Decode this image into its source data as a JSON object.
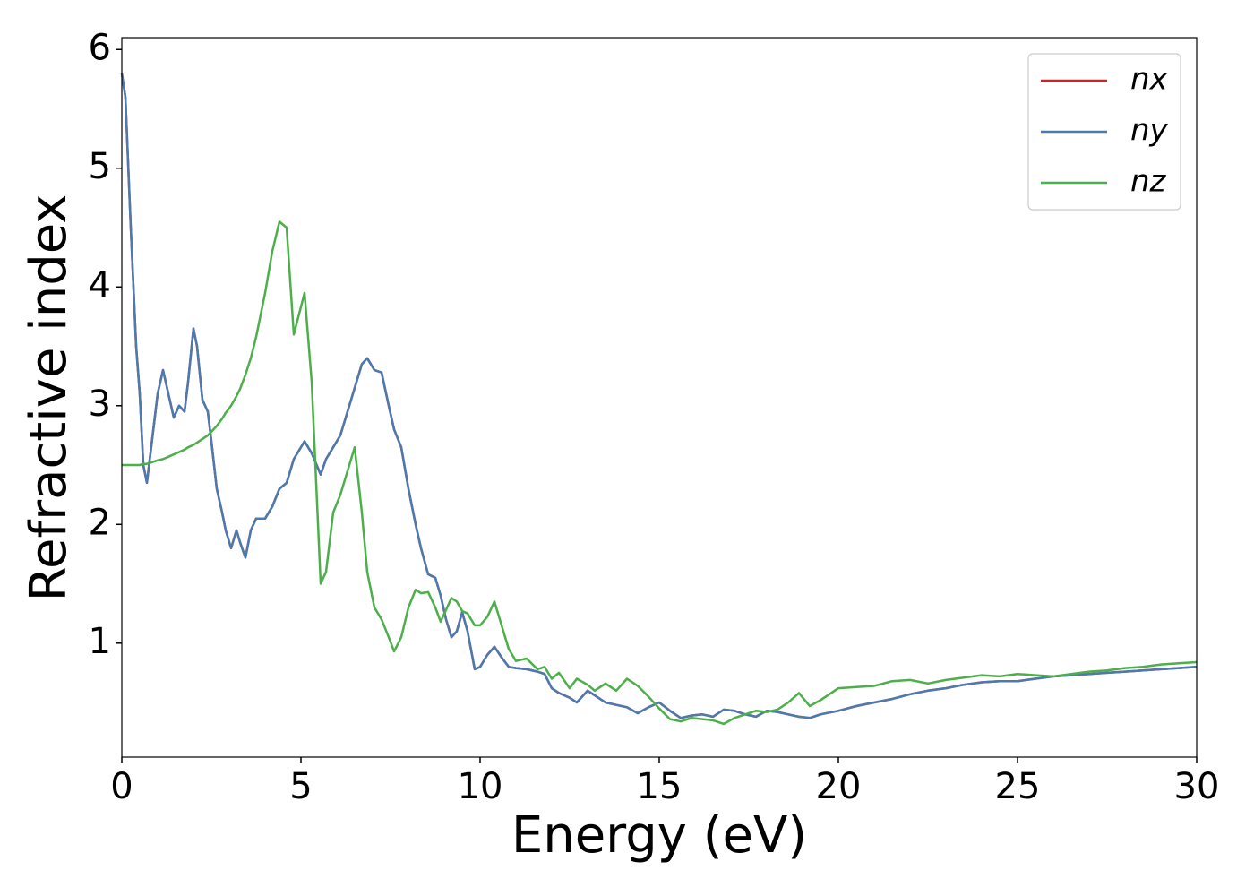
{
  "chart_data": {
    "type": "line",
    "x_label": "Energy (eV)",
    "y_label": "Refractive index",
    "x": [
      0,
      0.1,
      0.25,
      0.4,
      0.5,
      0.6,
      0.7,
      0.8,
      0.9,
      1.0,
      1.15,
      1.3,
      1.45,
      1.6,
      1.75,
      1.85,
      2.0,
      2.1,
      2.25,
      2.4,
      2.5,
      2.65,
      2.8,
      2.9,
      3.05,
      3.2,
      3.3,
      3.45,
      3.6,
      3.75,
      4.0,
      4.2,
      4.4,
      4.6,
      4.8,
      5.1,
      5.3,
      5.55,
      5.7,
      5.9,
      6.1,
      6.3,
      6.5,
      6.7,
      6.85,
      7.05,
      7.25,
      7.45,
      7.6,
      7.8,
      8.0,
      8.2,
      8.35,
      8.55,
      8.75,
      8.9,
      9.05,
      9.2,
      9.35,
      9.5,
      9.65,
      9.85,
      10.0,
      10.2,
      10.4,
      10.6,
      10.8,
      11.0,
      11.3,
      11.6,
      11.8,
      12.0,
      12.2,
      12.5,
      12.7,
      13.0,
      13.2,
      13.5,
      13.8,
      14.1,
      14.4,
      14.7,
      15.0,
      15.3,
      15.6,
      15.9,
      16.2,
      16.5,
      16.8,
      17.1,
      17.4,
      17.7,
      18.0,
      18.3,
      18.6,
      18.9,
      19.2,
      19.5,
      20,
      20.5,
      21,
      21.5,
      22,
      22.5,
      23,
      23.5,
      24,
      24.5,
      25,
      25.5,
      26,
      26.5,
      27,
      27.5,
      28,
      28.5,
      29,
      29.5,
      30
    ],
    "series": [
      {
        "name": "nx",
        "color": "#e41a1c",
        "values": [
          5.8,
          5.6,
          4.5,
          3.5,
          3.1,
          2.5,
          2.35,
          2.6,
          2.85,
          3.1,
          3.3,
          3.1,
          2.9,
          3.0,
          2.95,
          3.2,
          3.65,
          3.5,
          3.05,
          2.95,
          2.7,
          2.3,
          2.1,
          1.95,
          1.8,
          1.95,
          1.85,
          1.72,
          1.95,
          2.05,
          2.05,
          2.15,
          2.3,
          2.35,
          2.55,
          2.7,
          2.6,
          2.42,
          2.55,
          2.65,
          2.75,
          2.95,
          3.15,
          3.35,
          3.4,
          3.3,
          3.28,
          3.0,
          2.8,
          2.65,
          2.3,
          2.0,
          1.8,
          1.58,
          1.55,
          1.4,
          1.2,
          1.05,
          1.1,
          1.26,
          1.1,
          0.78,
          0.8,
          0.9,
          0.97,
          0.88,
          0.8,
          0.79,
          0.78,
          0.76,
          0.74,
          0.62,
          0.58,
          0.54,
          0.5,
          0.6,
          0.56,
          0.5,
          0.48,
          0.46,
          0.41,
          0.46,
          0.5,
          0.43,
          0.37,
          0.39,
          0.4,
          0.38,
          0.44,
          0.43,
          0.4,
          0.38,
          0.43,
          0.42,
          0.4,
          0.38,
          0.37,
          0.4,
          0.43,
          0.47,
          0.5,
          0.53,
          0.57,
          0.6,
          0.62,
          0.65,
          0.67,
          0.68,
          0.68,
          0.7,
          0.72,
          0.73,
          0.74,
          0.75,
          0.76,
          0.77,
          0.78,
          0.79,
          0.8
        ]
      },
      {
        "name": "ny",
        "color": "#4a7bb0",
        "values": [
          5.8,
          5.6,
          4.5,
          3.5,
          3.1,
          2.5,
          2.35,
          2.6,
          2.85,
          3.1,
          3.3,
          3.1,
          2.9,
          3.0,
          2.95,
          3.2,
          3.65,
          3.5,
          3.05,
          2.95,
          2.7,
          2.3,
          2.1,
          1.95,
          1.8,
          1.95,
          1.85,
          1.72,
          1.95,
          2.05,
          2.05,
          2.15,
          2.3,
          2.35,
          2.55,
          2.7,
          2.6,
          2.42,
          2.55,
          2.65,
          2.75,
          2.95,
          3.15,
          3.35,
          3.4,
          3.3,
          3.28,
          3.0,
          2.8,
          2.65,
          2.3,
          2.0,
          1.8,
          1.58,
          1.55,
          1.4,
          1.2,
          1.05,
          1.1,
          1.26,
          1.1,
          0.78,
          0.8,
          0.9,
          0.97,
          0.88,
          0.8,
          0.79,
          0.78,
          0.76,
          0.74,
          0.62,
          0.58,
          0.54,
          0.5,
          0.6,
          0.56,
          0.5,
          0.48,
          0.46,
          0.41,
          0.46,
          0.5,
          0.43,
          0.37,
          0.39,
          0.4,
          0.38,
          0.44,
          0.43,
          0.4,
          0.38,
          0.43,
          0.42,
          0.4,
          0.38,
          0.37,
          0.4,
          0.43,
          0.47,
          0.5,
          0.53,
          0.57,
          0.6,
          0.62,
          0.65,
          0.67,
          0.68,
          0.68,
          0.7,
          0.72,
          0.73,
          0.74,
          0.75,
          0.76,
          0.77,
          0.78,
          0.79,
          0.8
        ]
      },
      {
        "name": "nz",
        "color": "#4daf4a",
        "values": [
          2.5,
          2.5,
          2.5,
          2.5,
          2.5,
          2.51,
          2.51,
          2.52,
          2.53,
          2.54,
          2.55,
          2.57,
          2.59,
          2.61,
          2.63,
          2.65,
          2.67,
          2.69,
          2.72,
          2.75,
          2.78,
          2.83,
          2.89,
          2.94,
          3.0,
          3.08,
          3.14,
          3.26,
          3.4,
          3.58,
          3.95,
          4.3,
          4.55,
          4.5,
          3.6,
          3.95,
          3.2,
          1.5,
          1.6,
          2.1,
          2.25,
          2.45,
          2.65,
          2.1,
          1.6,
          1.3,
          1.2,
          1.05,
          0.93,
          1.05,
          1.3,
          1.45,
          1.42,
          1.43,
          1.3,
          1.18,
          1.28,
          1.38,
          1.35,
          1.27,
          1.25,
          1.15,
          1.15,
          1.22,
          1.35,
          1.15,
          0.95,
          0.85,
          0.87,
          0.78,
          0.8,
          0.7,
          0.75,
          0.62,
          0.7,
          0.65,
          0.6,
          0.66,
          0.6,
          0.7,
          0.64,
          0.55,
          0.45,
          0.36,
          0.34,
          0.37,
          0.36,
          0.35,
          0.32,
          0.37,
          0.4,
          0.43,
          0.42,
          0.44,
          0.5,
          0.58,
          0.47,
          0.52,
          0.62,
          0.63,
          0.64,
          0.68,
          0.69,
          0.66,
          0.69,
          0.71,
          0.73,
          0.72,
          0.74,
          0.73,
          0.72,
          0.74,
          0.76,
          0.77,
          0.79,
          0.8,
          0.82,
          0.83,
          0.84
        ]
      }
    ],
    "xlim": [
      0,
      30
    ],
    "xticks": [
      0,
      5,
      10,
      15,
      20,
      25,
      30
    ],
    "ylim": [
      0.04,
      6.1
    ],
    "yticks": [
      1,
      2,
      3,
      4,
      5,
      6
    ],
    "legend": "upper right",
    "grid": false
  }
}
